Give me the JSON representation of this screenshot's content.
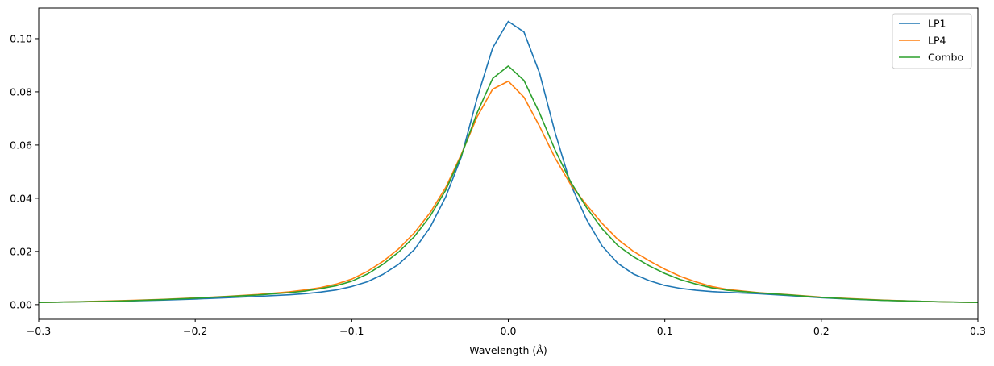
{
  "chart_data": {
    "type": "line",
    "title": "",
    "xlabel": "Wavelength (Å)",
    "ylabel": "",
    "xlim": [
      -0.3,
      0.3
    ],
    "ylim": [
      -0.0055,
      0.1115
    ],
    "grid": false,
    "legend_position": "top-right",
    "x_ticks": [
      -0.3,
      -0.2,
      -0.1,
      0.0,
      0.1,
      0.2,
      0.3
    ],
    "x_tick_labels": [
      "−0.3",
      "−0.2",
      "−0.1",
      "0.0",
      "0.1",
      "0.2",
      "0.3"
    ],
    "y_ticks": [
      0.0,
      0.02,
      0.04,
      0.06,
      0.08,
      0.1
    ],
    "y_tick_labels": [
      "0.00",
      "0.02",
      "0.04",
      "0.06",
      "0.08",
      "0.10"
    ],
    "x": [
      -0.3,
      -0.28,
      -0.26,
      -0.24,
      -0.22,
      -0.2,
      -0.18,
      -0.16,
      -0.14,
      -0.13,
      -0.12,
      -0.11,
      -0.1,
      -0.09,
      -0.08,
      -0.07,
      -0.06,
      -0.05,
      -0.04,
      -0.03,
      -0.02,
      -0.01,
      0.0,
      0.01,
      0.02,
      0.03,
      0.04,
      0.05,
      0.06,
      0.07,
      0.08,
      0.09,
      0.1,
      0.11,
      0.12,
      0.13,
      0.14,
      0.16,
      0.18,
      0.2,
      0.22,
      0.24,
      0.26,
      0.28,
      0.3
    ],
    "series": [
      {
        "name": "LP1",
        "color": "#1f77b4",
        "values": [
          0.0008,
          0.001,
          0.0012,
          0.0014,
          0.0017,
          0.0021,
          0.0026,
          0.0031,
          0.0037,
          0.0041,
          0.0047,
          0.0055,
          0.0068,
          0.0086,
          0.0114,
          0.0152,
          0.0207,
          0.029,
          0.0405,
          0.0555,
          0.0775,
          0.0965,
          0.1065,
          0.1025,
          0.087,
          0.0645,
          0.045,
          0.032,
          0.022,
          0.0155,
          0.0115,
          0.009,
          0.0072,
          0.0061,
          0.0054,
          0.0049,
          0.0046,
          0.0041,
          0.0034,
          0.0026,
          0.002,
          0.0016,
          0.0013,
          0.001,
          0.0008
        ]
      },
      {
        "name": "LP4",
        "color": "#ff7f0e",
        "values": [
          0.0008,
          0.001,
          0.0013,
          0.0016,
          0.002,
          0.0025,
          0.0031,
          0.0038,
          0.0048,
          0.0055,
          0.0064,
          0.0077,
          0.0096,
          0.0125,
          0.0163,
          0.021,
          0.027,
          0.0345,
          0.044,
          0.0565,
          0.0705,
          0.081,
          0.084,
          0.078,
          0.067,
          0.055,
          0.045,
          0.0375,
          0.0305,
          0.0245,
          0.02,
          0.0165,
          0.0133,
          0.0106,
          0.0085,
          0.0068,
          0.0057,
          0.0045,
          0.0037,
          0.0028,
          0.0022,
          0.0017,
          0.0013,
          0.001,
          0.0008
        ]
      },
      {
        "name": "Combo",
        "color": "#2ca02c",
        "values": [
          0.0008,
          0.001,
          0.0012,
          0.0015,
          0.0019,
          0.0024,
          0.003,
          0.0036,
          0.0045,
          0.0051,
          0.006,
          0.0071,
          0.0088,
          0.0115,
          0.0152,
          0.0198,
          0.0256,
          0.0332,
          0.043,
          0.056,
          0.072,
          0.085,
          0.0897,
          0.0843,
          0.072,
          0.058,
          0.046,
          0.0365,
          0.0285,
          0.0222,
          0.018,
          0.0146,
          0.0117,
          0.0094,
          0.0077,
          0.0063,
          0.0054,
          0.0044,
          0.0036,
          0.0027,
          0.0021,
          0.0016,
          0.0013,
          0.001,
          0.0008
        ]
      }
    ]
  }
}
